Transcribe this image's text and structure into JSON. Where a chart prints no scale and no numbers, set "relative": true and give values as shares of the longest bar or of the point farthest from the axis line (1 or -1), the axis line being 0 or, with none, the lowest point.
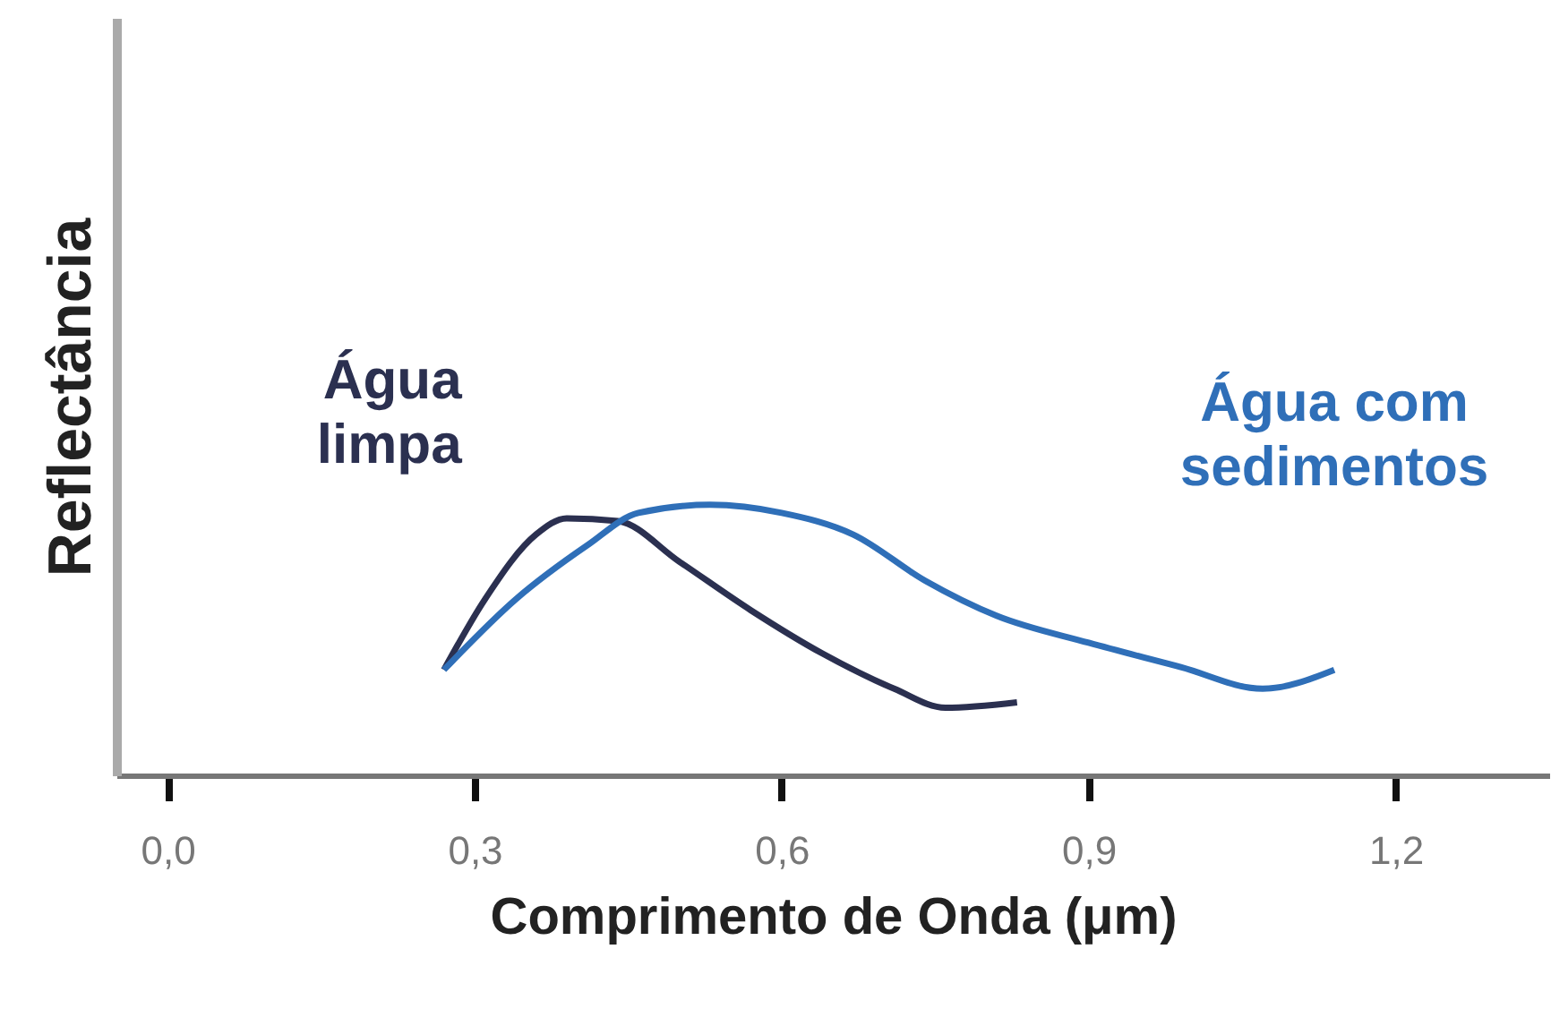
{
  "chart_data": {
    "type": "line",
    "relative": true,
    "xlabel": "Comprimento de Onda (μm)",
    "ylabel": "Reflectância",
    "xlim": [
      -0.05,
      1.35
    ],
    "xticks": [
      {
        "value": 0,
        "label": "0,0"
      },
      {
        "value": 0.3,
        "label": "0,3"
      },
      {
        "value": 0.6,
        "label": "0,6"
      },
      {
        "value": 0.9,
        "label": "0,9"
      },
      {
        "value": 1.2,
        "label": "1,2"
      }
    ],
    "series": [
      {
        "name": "Água limpa",
        "color": "#2b3050",
        "x": [
          0.27,
          0.31,
          0.36,
          0.39,
          0.44,
          0.5,
          0.57,
          0.64,
          0.71,
          0.76,
          0.83
        ],
        "values": [
          0.39,
          0.65,
          0.89,
          0.95,
          0.94,
          0.79,
          0.61,
          0.45,
          0.32,
          0.25,
          0.27
        ]
      },
      {
        "name": "Água com sedimentos",
        "color": "#2f6fb8",
        "x": [
          0.27,
          0.34,
          0.41,
          0.46,
          0.53,
          0.6,
          0.67,
          0.74,
          0.81,
          0.9,
          0.99,
          1.07,
          1.14
        ],
        "values": [
          0.39,
          0.65,
          0.85,
          0.97,
          1.0,
          0.97,
          0.89,
          0.72,
          0.59,
          0.49,
          0.4,
          0.32,
          0.39
        ]
      }
    ]
  }
}
